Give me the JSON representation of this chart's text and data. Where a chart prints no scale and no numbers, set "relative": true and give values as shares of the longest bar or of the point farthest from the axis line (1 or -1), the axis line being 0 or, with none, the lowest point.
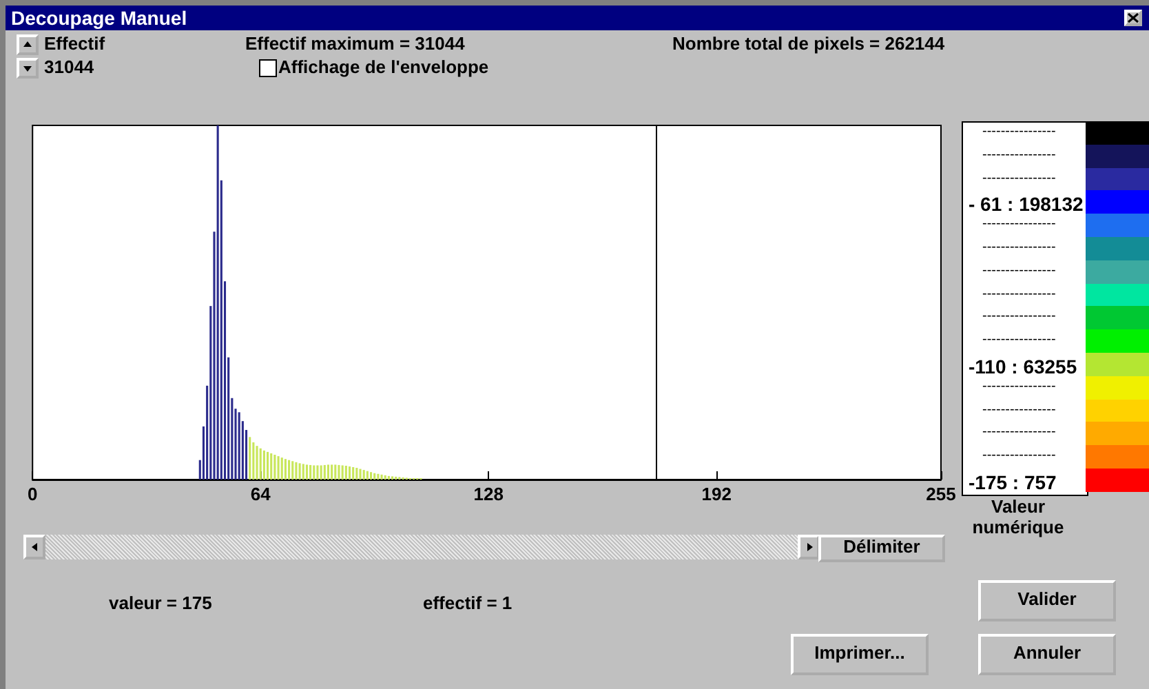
{
  "chart_data": {
    "type": "bar",
    "title": "Decoupage Manuel",
    "xlabel": "Valeur numérique",
    "relative": true,
    "x": [
      47,
      48,
      49,
      50,
      51,
      52,
      53,
      54,
      55,
      56,
      57,
      58,
      59,
      60,
      61,
      62,
      63,
      64,
      65,
      66,
      67,
      68,
      69,
      70,
      71,
      72,
      73,
      74,
      75,
      76,
      77,
      78,
      79,
      80,
      81,
      82,
      83,
      84,
      85,
      86,
      87,
      88,
      89,
      90,
      91,
      92,
      93,
      94,
      95,
      96,
      97,
      98,
      99,
      100,
      101,
      102,
      103,
      104,
      105,
      106,
      107,
      108,
      109
    ],
    "values": [
      0.055,
      0.15,
      0.265,
      0.49,
      0.7,
      1,
      0.845,
      0.56,
      0.345,
      0.23,
      0.2,
      0.19,
      0.165,
      0.14,
      0.12,
      0.105,
      0.095,
      0.088,
      0.082,
      0.078,
      0.074,
      0.07,
      0.066,
      0.062,
      0.058,
      0.055,
      0.052,
      0.049,
      0.046,
      0.044,
      0.042,
      0.041,
      0.04,
      0.04,
      0.04,
      0.041,
      0.042,
      0.042,
      0.042,
      0.041,
      0.04,
      0.039,
      0.037,
      0.035,
      0.033,
      0.03,
      0.027,
      0.024,
      0.021,
      0.018,
      0.016,
      0.014,
      0.012,
      0.01,
      0.009,
      0.008,
      0.007,
      0.006,
      0.005,
      0.004,
      0.004,
      0.004,
      0.004
    ],
    "colors": [
      "#2b2b8c",
      "#2b2b8c",
      "#2b2b8c",
      "#2b2b8c",
      "#2b2b8c",
      "#2b2b8c",
      "#2b2b8c",
      "#2b2b8c",
      "#2b2b8c",
      "#2b2b8c",
      "#2b2b8c",
      "#2b2b8c",
      "#2b2b8c",
      "#2b2b8c",
      "#c8e65a",
      "#c8e65a",
      "#c8e65a",
      "#c8e65a",
      "#c8e65a",
      "#c8e65a",
      "#c8e65a",
      "#c8e65a",
      "#c8e65a",
      "#c8e65a",
      "#c8e65a",
      "#c8e65a",
      "#c8e65a",
      "#c8e65a",
      "#c8e65a",
      "#c8e65a",
      "#c8e65a",
      "#c8e65a",
      "#c8e65a",
      "#c8e65a",
      "#c8e65a",
      "#c8e65a",
      "#c8e65a",
      "#c8e65a",
      "#c8e65a",
      "#c8e65a",
      "#c8e65a",
      "#c8e65a",
      "#c8e65a",
      "#c8e65a",
      "#c8e65a",
      "#c8e65a",
      "#c8e65a",
      "#c8e65a",
      "#c8e65a",
      "#c8e65a",
      "#c8e65a",
      "#c8e65a",
      "#c8e65a",
      "#c8e65a",
      "#c8e65a",
      "#c8e65a",
      "#c8e65a",
      "#c8e65a",
      "#c8e65a",
      "#c8e65a",
      "#c8e65a",
      "#c8e65a",
      "#c8e65a"
    ],
    "xlim": [
      0,
      255
    ],
    "xticks": [
      0,
      64,
      128,
      192,
      255
    ],
    "ref_lines": [
      {
        "axis": "x",
        "value": 175,
        "color": "#000000"
      }
    ],
    "annotations": [
      "Effectif",
      "31044",
      "Effectif maximum =  31044",
      "Affichage de l'enveloppe",
      "Nombre total de pixels =  262144",
      "----------------",
      "----------------",
      "----------------",
      "- 61 : 198132",
      "----------------",
      "----------------",
      "----------------",
      "----------------",
      "----------------",
      "----------------",
      "-110 : 63255",
      "----------------",
      "----------------",
      "----------------",
      "----------------",
      "-175 : 757",
      "Délimiter",
      "valeur = 175",
      "effectif = 1",
      "Valider",
      "Imprimer...",
      "Annuler"
    ]
  }
}
